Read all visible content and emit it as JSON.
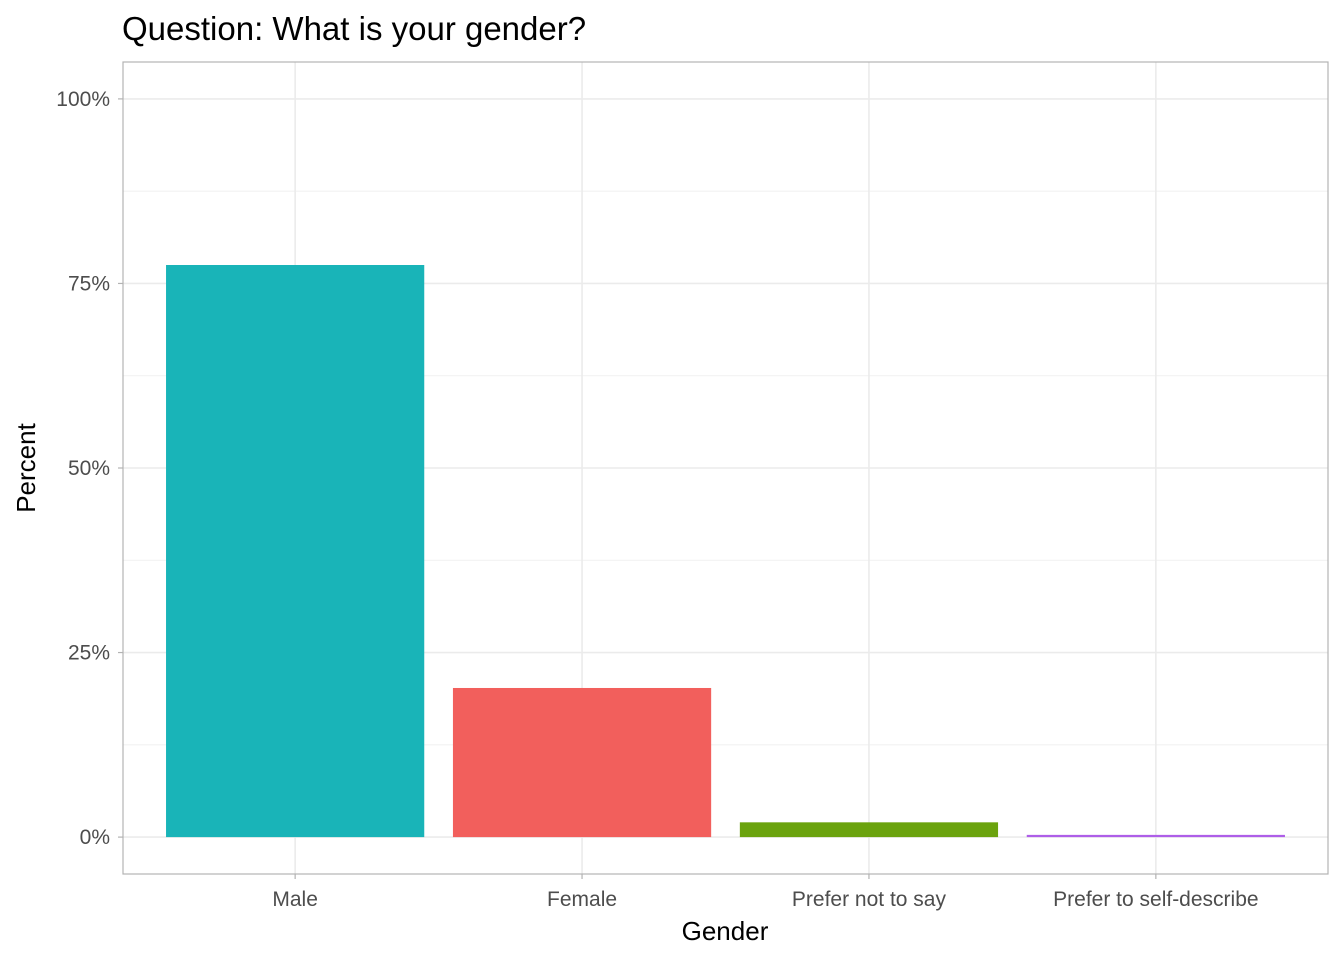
{
  "chart_data": {
    "type": "bar",
    "title": "Question: What is your gender?",
    "xlabel": "Gender",
    "ylabel": "Percent",
    "categories": [
      "Male",
      "Female",
      "Prefer not to say",
      "Prefer to self-describe"
    ],
    "values": [
      77.5,
      20.2,
      2.0,
      0.3
    ],
    "colors": [
      "#19B4B8",
      "#F25F5C",
      "#6BA30E",
      "#AE5EE8"
    ],
    "ylim": [
      -5,
      105
    ],
    "yticks": [
      0,
      25,
      50,
      75,
      100
    ],
    "ytick_labels": [
      "0%",
      "25%",
      "50%",
      "75%",
      "100%"
    ],
    "grid": true,
    "legend": "none"
  }
}
